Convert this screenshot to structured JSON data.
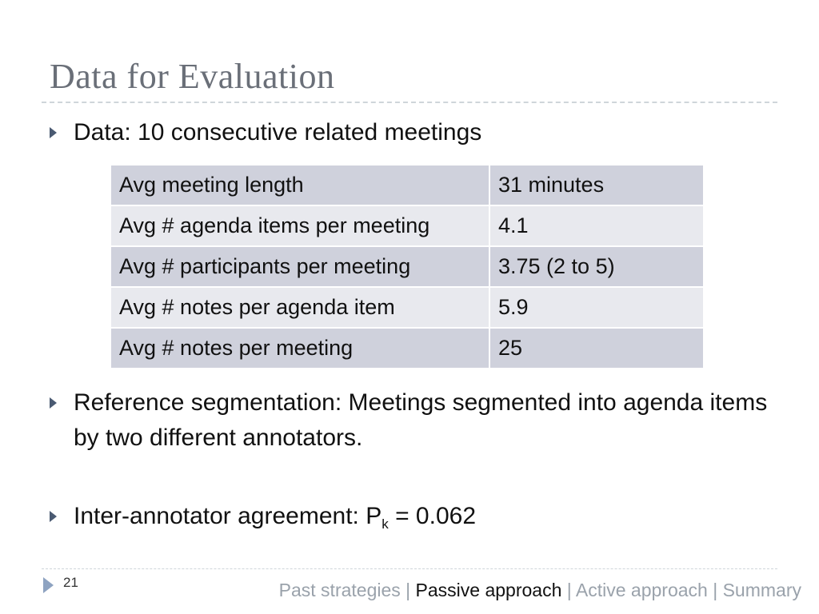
{
  "slide": {
    "title": "Data for Evaluation",
    "bullets": [
      "Data: 10 consecutive related meetings",
      "Reference segmentation: Meetings segmented into agenda items by two different annotators.",
      "Inter-annotator agreement: P",
      "k",
      " = 0.062"
    ],
    "table": [
      [
        "Avg meeting length",
        "31 minutes"
      ],
      [
        "Avg # agenda items per meeting",
        "4.1"
      ],
      [
        "Avg # participants per meeting",
        "3.75 (2 to 5)"
      ],
      [
        "Avg # notes per agenda item",
        "5.9"
      ],
      [
        "Avg # notes per meeting",
        "25"
      ]
    ],
    "page_number": "21",
    "footer": {
      "past": "Past strategies",
      "sep1": " | ",
      "passive": "Passive approach",
      "sep2": " | ",
      "active": "Active approach",
      "sep3": " | ",
      "summary": "Summary"
    }
  },
  "colors": {
    "title": "#6a6f78",
    "bullet_arrow": "#4a5a72",
    "table_row_dark": "#cfd1dc",
    "table_row_light": "#e8e9ee",
    "footer_inactive": "#9aa2ab",
    "footer_active": "#111111"
  }
}
